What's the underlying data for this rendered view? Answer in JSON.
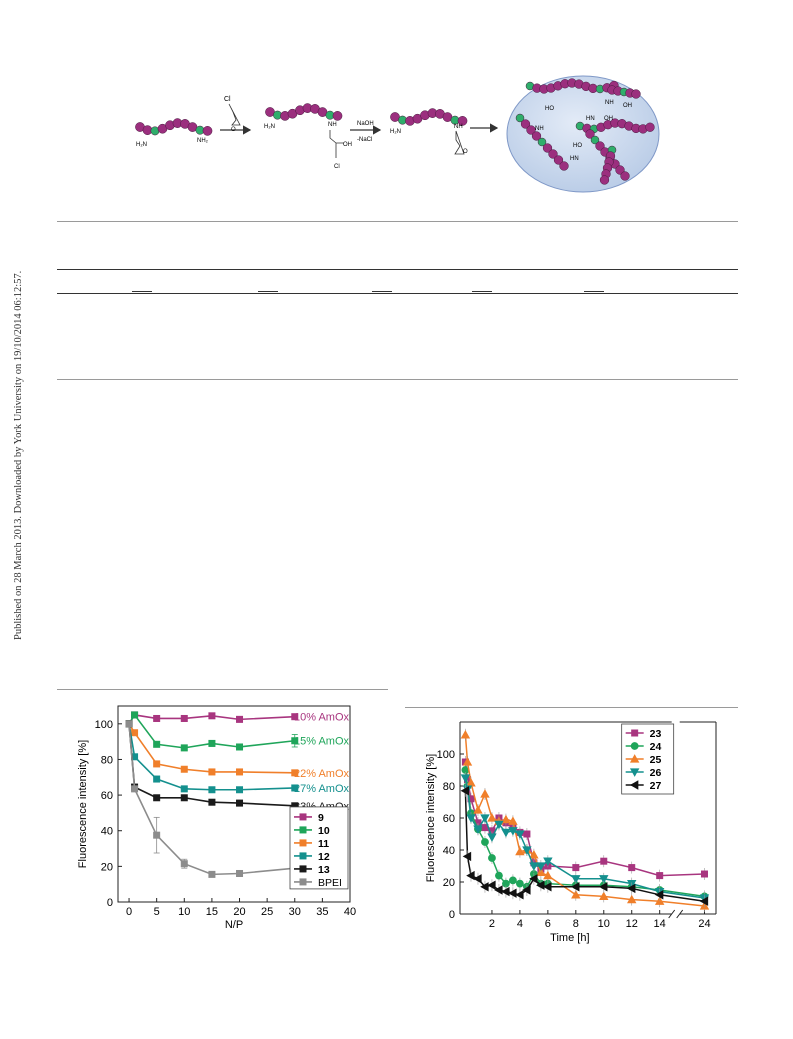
{
  "sidebar_note": "Published on 28 March 2013. Downloaded by York University on 19/10/2014 06:12:57.",
  "scheme": {
    "reagent_top": "Cl",
    "reagent_oxygen": "O",
    "amine_left": "H₂N",
    "amine_right": "NH₂",
    "step2_reagent": "NaOH",
    "step2_byproduct": "-NaCl",
    "labels": {
      "nh": "NH",
      "oh": "OH",
      "cl": "Cl",
      "ho": "HO",
      "hn": "HN",
      "o": "O"
    },
    "colors": {
      "bead": "#9b2f7e",
      "node": "#2fae6b",
      "sphere": "#c9d8ee"
    }
  },
  "chart_data": [
    {
      "type": "line",
      "xlabel": "N/P",
      "ylabel": "Fluorescence intensity [%]",
      "xlim": [
        -2,
        40
      ],
      "ylim": [
        0,
        110
      ],
      "xticks": [
        0,
        5,
        10,
        15,
        20,
        25,
        30,
        35,
        40
      ],
      "yticks": [
        0,
        20,
        40,
        60,
        80,
        100
      ],
      "legend_position": "right",
      "series": [
        {
          "name": "9",
          "color": "#a8357f",
          "marker": "square",
          "x": [
            0,
            1,
            5,
            10,
            15,
            20,
            30
          ],
          "y": [
            100,
            105,
            103,
            103,
            104.5,
            102.5,
            104
          ]
        },
        {
          "name": "10",
          "color": "#1fa55a",
          "marker": "square",
          "x": [
            0,
            1,
            5,
            10,
            15,
            20,
            30
          ],
          "y": [
            100,
            105,
            88.5,
            86.5,
            89,
            87,
            90.5
          ],
          "err": [
            0,
            0,
            0,
            0,
            0,
            0,
            3.5
          ]
        },
        {
          "name": "11",
          "color": "#f07f2a",
          "marker": "square",
          "x": [
            0,
            1,
            5,
            10,
            15,
            20,
            30
          ],
          "y": [
            100,
            95,
            77.5,
            74.5,
            73,
            73,
            72.5
          ]
        },
        {
          "name": "12",
          "color": "#14908e",
          "marker": "square",
          "x": [
            0,
            1,
            5,
            10,
            15,
            20,
            30
          ],
          "y": [
            100,
            81.5,
            69,
            63.5,
            63,
            63,
            64
          ]
        },
        {
          "name": "13",
          "color": "#1a1a1a",
          "marker": "square",
          "x": [
            0,
            1,
            5,
            10,
            15,
            20,
            30
          ],
          "y": [
            100,
            64.5,
            58.5,
            58.5,
            56,
            55.5,
            54
          ]
        },
        {
          "name": "BPEI",
          "color": "#8c8c8c",
          "marker": "square",
          "x": [
            0,
            1,
            5,
            10,
            15,
            20,
            30
          ],
          "y": [
            100,
            63.5,
            37.5,
            21.5,
            15.5,
            16,
            19
          ],
          "err": [
            0,
            0,
            10,
            2.5,
            0,
            0,
            0
          ]
        }
      ],
      "annotations": [
        {
          "text": "10% AmOx",
          "color": "#a8357f"
        },
        {
          "text": "15% AmOx",
          "color": "#1fa55a"
        },
        {
          "text": "22% AmOx",
          "color": "#f07f2a"
        },
        {
          "text": "27% AmOx",
          "color": "#14908e"
        },
        {
          "text": "33% AmOx",
          "color": "#1a1a1a"
        }
      ]
    },
    {
      "type": "line",
      "xlabel": "Time [h]",
      "ylabel": "Fluorescence intensity [%]",
      "xlim": [
        0,
        24
      ],
      "ylim": [
        0,
        120
      ],
      "xtick_labels": [
        "2",
        "4",
        "6",
        "8",
        "10",
        "12",
        "14",
        "24"
      ],
      "yticks": [
        0,
        20,
        40,
        60,
        80,
        100
      ],
      "axis_break": "between 14 and 24",
      "legend_position": "top-right",
      "series": [
        {
          "name": "23",
          "color": "#a8357f",
          "marker": "square",
          "x": [
            0.1,
            0.25,
            0.5,
            1,
            1.5,
            2,
            2.5,
            3,
            3.5,
            4,
            4.5,
            5,
            5.5,
            6,
            8,
            10,
            12,
            14,
            24
          ],
          "y": [
            95,
            84,
            72,
            57,
            54,
            52,
            60,
            57,
            55,
            51,
            50,
            32,
            28,
            30,
            29,
            33,
            29,
            24,
            25
          ]
        },
        {
          "name": "24",
          "color": "#1fa55a",
          "marker": "circle",
          "x": [
            0.1,
            0.25,
            0.5,
            1,
            1.5,
            2,
            2.5,
            3,
            3.5,
            4,
            4.5,
            5,
            5.5,
            6,
            8,
            10,
            12,
            14,
            24
          ],
          "y": [
            90,
            80,
            63,
            53,
            45,
            35,
            24,
            19,
            21,
            19,
            17,
            25,
            19,
            19,
            18,
            18,
            17,
            15,
            11
          ]
        },
        {
          "name": "25",
          "color": "#f07f2a",
          "marker": "triangle-up",
          "x": [
            0.1,
            0.25,
            0.5,
            1,
            1.5,
            2,
            2.5,
            3,
            3.5,
            4,
            4.5,
            5,
            5.5,
            6,
            8,
            10,
            12,
            14,
            24
          ],
          "y": [
            112,
            95,
            82,
            65,
            75,
            60,
            58,
            59,
            58,
            39,
            40,
            37,
            26,
            24,
            12,
            11,
            9,
            8,
            5
          ]
        },
        {
          "name": "26",
          "color": "#14908e",
          "marker": "triangle-down",
          "x": [
            0.1,
            0.25,
            0.5,
            1,
            1.5,
            2,
            2.5,
            3,
            3.5,
            4,
            4.5,
            5,
            5.5,
            6,
            8,
            10,
            12,
            14,
            24
          ],
          "y": [
            85,
            78,
            60,
            53,
            60,
            48,
            56,
            51,
            52,
            50,
            40,
            30,
            30,
            33,
            22,
            22,
            19,
            14,
            10
          ]
        },
        {
          "name": "27",
          "color": "#111111",
          "marker": "triangle-left",
          "x": [
            0.1,
            0.25,
            0.5,
            1,
            1.5,
            2,
            2.5,
            3,
            3.5,
            4,
            4.5,
            5,
            5.5,
            6,
            8,
            10,
            12,
            14,
            24
          ],
          "y": [
            77,
            36,
            24,
            22,
            17,
            18,
            15,
            14,
            13,
            12,
            15,
            22,
            18,
            17,
            17,
            17,
            16,
            12,
            8
          ]
        }
      ]
    }
  ]
}
